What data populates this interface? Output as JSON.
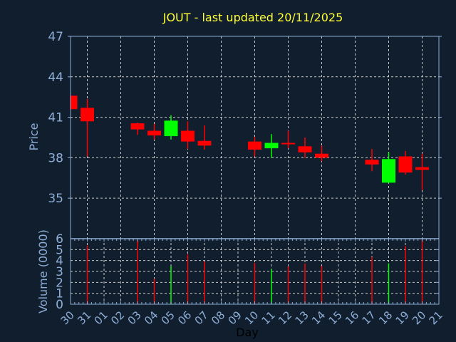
{
  "chart_data": {
    "type": "candlestick",
    "title": "JOUT - last updated 20/11/2025",
    "xlabel": "Day",
    "ylabel": "Price",
    "volume_label": "Volume (0000)",
    "x_ticks": [
      "30",
      "31",
      "01",
      "02",
      "03",
      "04",
      "05",
      "06",
      "07",
      "08",
      "09",
      "10",
      "11",
      "12",
      "13",
      "14",
      "15",
      "16",
      "17",
      "18",
      "19",
      "20",
      "21"
    ],
    "price_ticks": [
      47,
      44,
      41,
      38,
      35
    ],
    "price_ylim": [
      32,
      47
    ],
    "volume_ticks": [
      0,
      1,
      2,
      3,
      4,
      5,
      6
    ],
    "volume_ylim": [
      0,
      6
    ],
    "grid": true,
    "colors": {
      "up": "#00ff00",
      "down": "#ff0000",
      "background": "#101e2e",
      "title": "#ffff33",
      "axis": "#8eaed6"
    },
    "candles": [
      {
        "day": "30",
        "open": 42.6,
        "high": 42.6,
        "low": 41.6,
        "close": 41.6,
        "volume": null
      },
      {
        "day": "31",
        "open": 41.7,
        "high": 42.35,
        "low": 38.1,
        "close": 40.7,
        "volume": 5.37
      },
      {
        "day": "03",
        "open": 40.55,
        "high": 40.6,
        "low": 39.7,
        "close": 40.1,
        "volume": 5.87
      },
      {
        "day": "04",
        "open": 40.0,
        "high": 40.5,
        "low": 39.35,
        "close": 39.65,
        "volume": 2.33
      },
      {
        "day": "05",
        "open": 39.6,
        "high": 41.15,
        "low": 39.35,
        "close": 40.75,
        "volume": 3.48
      },
      {
        "day": "06",
        "open": 40.0,
        "high": 40.7,
        "low": 38.65,
        "close": 39.2,
        "volume": 4.57
      },
      {
        "day": "07",
        "open": 39.25,
        "high": 40.4,
        "low": 38.6,
        "close": 38.9,
        "volume": 3.91
      },
      {
        "day": "10",
        "open": 39.2,
        "high": 39.55,
        "low": 38.1,
        "close": 38.6,
        "volume": 3.78
      },
      {
        "day": "11",
        "open": 38.7,
        "high": 39.75,
        "low": 38.0,
        "close": 39.1,
        "volume": 3.22
      },
      {
        "day": "12",
        "open": 39.1,
        "high": 40.0,
        "low": 38.7,
        "close": 39.0,
        "volume": 3.46
      },
      {
        "day": "13",
        "open": 38.85,
        "high": 39.5,
        "low": 38.0,
        "close": 38.4,
        "volume": 3.72
      },
      {
        "day": "14",
        "open": 38.3,
        "high": 38.9,
        "low": 37.75,
        "close": 38.0,
        "volume": 3.5
      },
      {
        "day": "17",
        "open": 37.85,
        "high": 38.65,
        "low": 37.0,
        "close": 37.5,
        "volume": 4.33
      },
      {
        "day": "18",
        "open": 36.15,
        "high": 38.4,
        "low": 36.15,
        "close": 37.9,
        "volume": 3.74
      },
      {
        "day": "19",
        "open": 38.1,
        "high": 38.5,
        "low": 36.75,
        "close": 36.9,
        "volume": 5.33
      },
      {
        "day": "20",
        "open": 37.3,
        "high": 38.3,
        "low": 35.6,
        "close": 37.1,
        "volume": 6.0
      }
    ]
  }
}
